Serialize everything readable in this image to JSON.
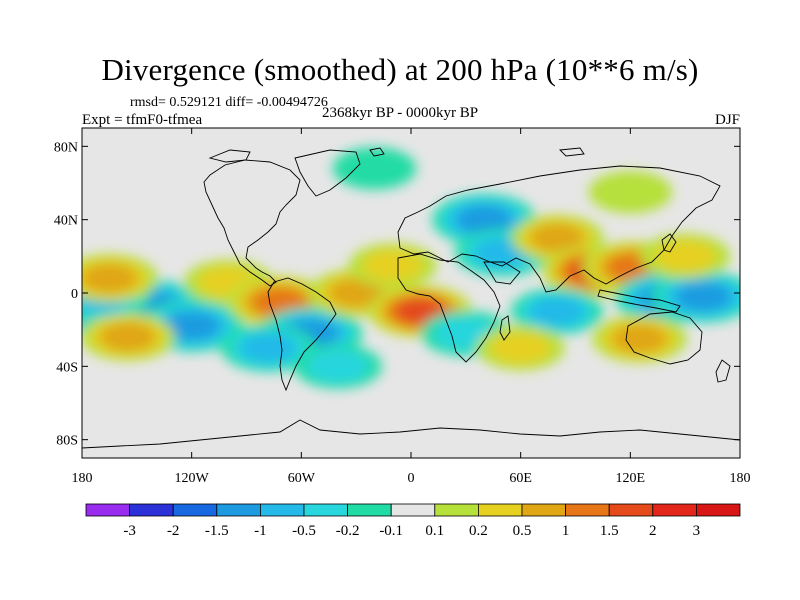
{
  "title": "Divergence (smoothed) at 200 hPa (10**6 m/s)",
  "stats": "rmsd= 0.529121 diff= -0.00494726",
  "experiment": "Expt = tfmF0-tfmea",
  "period": "2368kyr BP - 0000kyr BP",
  "season": "DJF",
  "chart_data": {
    "type": "heatmap",
    "title": "Divergence (smoothed) at 200 hPa (10**6 m/s)",
    "x_axis": {
      "range": [
        -180,
        180
      ],
      "ticks": [
        -180,
        -120,
        -60,
        0,
        60,
        120,
        180
      ],
      "tick_labels": [
        "180",
        "120W",
        "60W",
        "0",
        "60E",
        "120E",
        "180"
      ]
    },
    "y_axis": {
      "range": [
        -90,
        90
      ],
      "ticks": [
        80,
        40,
        0,
        -40,
        -80
      ],
      "tick_labels": [
        "80N",
        "40N",
        "0",
        "40S",
        "80S"
      ]
    },
    "colorbar": {
      "boundaries": [
        "-3",
        "-2",
        "-1.5",
        "-1",
        "-0.5",
        "-0.2",
        "-0.1",
        "0.1",
        "0.2",
        "0.5",
        "1",
        "1.5",
        "2",
        "3"
      ],
      "colors": [
        "#9a2cf0",
        "#2b32d8",
        "#1669e0",
        "#1e9be0",
        "#24b9e8",
        "#28d6de",
        "#20dca4",
        "#e6e6e6",
        "#b6e03a",
        "#e6d020",
        "#e0a614",
        "#e67618",
        "#e44a1a",
        "#e2261a",
        "#d81616"
      ]
    },
    "features": [
      {
        "lon": -160,
        "lat": -12,
        "value": -2.2
      },
      {
        "lon": -142,
        "lat": -7,
        "value": -1.6
      },
      {
        "lon": -170,
        "lat": -2,
        "value": -1.0
      },
      {
        "lon": -120,
        "lat": -18,
        "value": -1.2
      },
      {
        "lon": -155,
        "lat": -24,
        "value": 0.8
      },
      {
        "lon": -165,
        "lat": 8,
        "value": 0.9
      },
      {
        "lon": -100,
        "lat": 6,
        "value": 0.5
      },
      {
        "lon": -72,
        "lat": -5,
        "value": 1.3
      },
      {
        "lon": -55,
        "lat": -22,
        "value": -1.3
      },
      {
        "lon": -78,
        "lat": -30,
        "value": -0.8
      },
      {
        "lon": -30,
        "lat": 0,
        "value": 0.8
      },
      {
        "lon": 5,
        "lat": -10,
        "value": 1.7
      },
      {
        "lon": -10,
        "lat": 15,
        "value": 0.5
      },
      {
        "lon": 40,
        "lat": 40,
        "value": -1.2
      },
      {
        "lon": 50,
        "lat": 22,
        "value": -0.8
      },
      {
        "lon": 80,
        "lat": 30,
        "value": 0.7
      },
      {
        "lon": 100,
        "lat": 12,
        "value": 1.9
      },
      {
        "lon": 122,
        "lat": 14,
        "value": 1.3
      },
      {
        "lon": 80,
        "lat": -10,
        "value": -0.7
      },
      {
        "lon": 140,
        "lat": -3,
        "value": -1.5
      },
      {
        "lon": 160,
        "lat": -2,
        "value": -1.3
      },
      {
        "lon": 150,
        "lat": 20,
        "value": 0.6
      },
      {
        "lon": 125,
        "lat": -25,
        "value": 0.8
      },
      {
        "lon": 30,
        "lat": -22,
        "value": -0.6
      },
      {
        "lon": 60,
        "lat": -30,
        "value": 0.5
      },
      {
        "lon": -40,
        "lat": -40,
        "value": -0.5
      },
      {
        "lon": 120,
        "lat": 55,
        "value": 0.3
      },
      {
        "lon": -20,
        "lat": 68,
        "value": -0.3
      }
    ]
  }
}
